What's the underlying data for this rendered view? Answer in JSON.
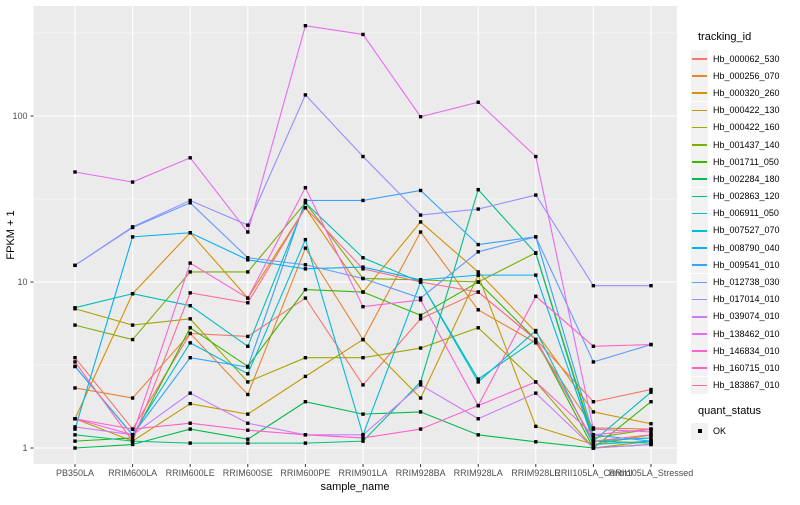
{
  "style": {
    "background": "#FFFFFF",
    "panel_bg": "#EBEBEB",
    "grid_color": "#FFFFFF",
    "axis_text_color": "#4D4D4D",
    "title_color": "#000000",
    "legend_key_bg": "#F2F2F2",
    "point_color": "#000000"
  },
  "chart_data": {
    "type": "line",
    "title": "",
    "xlabel": "sample_name",
    "ylabel": "FPKM + 1",
    "y_scale": "log10",
    "y_ticks": [
      1,
      10,
      100
    ],
    "y_minor_ticks": [
      3.162,
      31.62,
      316.2
    ],
    "ylim": [
      0.95,
      390
    ],
    "grid": true,
    "legend_position": "right",
    "point_shape": "square",
    "categories": [
      "PB350LA",
      "RRIM600LA",
      "RRIM600LE",
      "RRIM600SE",
      "RRIM600PE",
      "RRIM901LA",
      "RRIM928BA",
      "RRIM928LA",
      "RRIM928LE",
      "RRII105LA_Control",
      "RRII105LA_Stressed"
    ],
    "legend": {
      "color_legend_title": "tracking_id",
      "shape_legend_title": "quant_status",
      "shape_items": [
        "OK"
      ]
    },
    "series": [
      {
        "name": "Hb_000062_530",
        "color": "#F8766D",
        "values": [
          3.5,
          1.3,
          4.9,
          4.7,
          8.0,
          2.4,
          6.0,
          8.7,
          4.5,
          1.9,
          2.25
        ]
      },
      {
        "name": "Hb_000256_070",
        "color": "#EA8331",
        "values": [
          2.3,
          2.0,
          4.9,
          2.1,
          16,
          4.5,
          20,
          6.8,
          4.3,
          1.32,
          1.3
        ]
      },
      {
        "name": "Hb_000320_260",
        "color": "#D89000",
        "values": [
          1.5,
          8.5,
          19.8,
          8.0,
          28,
          8.7,
          23,
          11.5,
          5.0,
          1.65,
          1.4
        ]
      },
      {
        "name": "Hb_000422_130",
        "color": "#C09B00",
        "values": [
          1.5,
          1.1,
          1.85,
          1.6,
          2.7,
          4.5,
          2.0,
          11,
          1.35,
          1.05,
          1.2
        ]
      },
      {
        "name": "Hb_000422_160",
        "color": "#A3A500",
        "values": [
          6.9,
          5.5,
          6.0,
          2.5,
          3.5,
          3.5,
          4.0,
          5.3,
          2.5,
          1.0,
          1.1
        ]
      },
      {
        "name": "Hb_001437_140",
        "color": "#7CAE00",
        "values": [
          5.5,
          4.5,
          11.5,
          11.5,
          30,
          10.5,
          10.3,
          10,
          15,
          1.15,
          1.3
        ]
      },
      {
        "name": "Hb_001711_050",
        "color": "#39B600",
        "values": [
          1.1,
          1.15,
          5.3,
          3.1,
          9.0,
          8.7,
          6.3,
          10,
          4.5,
          1.0,
          1.9
        ]
      },
      {
        "name": "Hb_002284_180",
        "color": "#00BB4E",
        "values": [
          1.0,
          1.05,
          1.3,
          1.13,
          1.9,
          1.6,
          1.65,
          1.2,
          1.09,
          1.0,
          1.05
        ]
      },
      {
        "name": "Hb_002863_120",
        "color": "#00C087",
        "values": [
          1.2,
          1.1,
          1.07,
          1.07,
          1.07,
          1.1,
          2.5,
          36,
          14.9,
          1.1,
          1.07
        ]
      },
      {
        "name": "Hb_006911_050",
        "color": "#00C0B8",
        "values": [
          7.0,
          8.5,
          7.2,
          4.1,
          30,
          14,
          10,
          2.6,
          4.5,
          1.1,
          2.17
        ]
      },
      {
        "name": "Hb_007527_070",
        "color": "#00BCD8",
        "values": [
          3.1,
          1.2,
          4.3,
          2.8,
          18,
          1.2,
          10,
          2.5,
          5.1,
          1.05,
          1.1
        ]
      },
      {
        "name": "Hb_008790_040",
        "color": "#00B0F6",
        "values": [
          1.3,
          18.7,
          19.8,
          13.6,
          12,
          12.3,
          10.3,
          11,
          11,
          1.1,
          1.15
        ]
      },
      {
        "name": "Hb_009541_010",
        "color": "#35A2FF",
        "values": [
          3.1,
          1.2,
          3.5,
          3.07,
          31,
          31,
          35.6,
          16.8,
          18.7,
          1.2,
          1.1
        ]
      },
      {
        "name": "Hb_012738_030",
        "color": "#619CFF",
        "values": [
          12.6,
          21.3,
          30,
          14,
          12.7,
          10.5,
          8.0,
          15.2,
          18.7,
          3.3,
          4.2
        ]
      },
      {
        "name": "Hb_017014_010",
        "color": "#9590FF",
        "values": [
          12.6,
          21.5,
          31,
          22,
          134,
          57,
          25.3,
          27.5,
          33.4,
          9.5,
          9.5
        ]
      },
      {
        "name": "Hb_039074_010",
        "color": "#C77CFF",
        "values": [
          1.34,
          1.2,
          2.14,
          1.41,
          1.2,
          1.2,
          2.4,
          1.5,
          2.14,
          1.0,
          1.05
        ]
      },
      {
        "name": "Hb_138462_010",
        "color": "#E76BF3",
        "values": [
          46,
          40,
          56,
          20,
          350,
          310,
          99,
          121,
          57,
          1.3,
          1.25
        ]
      },
      {
        "name": "Hb_146834_010",
        "color": "#FA62DB",
        "values": [
          1.5,
          1.2,
          13,
          8.0,
          37,
          7.1,
          7.8,
          1.8,
          2.5,
          1.2,
          1.3
        ]
      },
      {
        "name": "Hb_160715_010",
        "color": "#FF61C9",
        "values": [
          1.5,
          1.3,
          1.41,
          1.28,
          1.2,
          1.15,
          1.3,
          1.8,
          8.2,
          4.1,
          4.2
        ]
      },
      {
        "name": "Hb_183867_010",
        "color": "#FF6A98",
        "values": [
          3.3,
          1.1,
          8.6,
          7.5,
          28,
          12,
          10,
          8.7,
          4.5,
          1.1,
          1.2
        ]
      }
    ]
  }
}
